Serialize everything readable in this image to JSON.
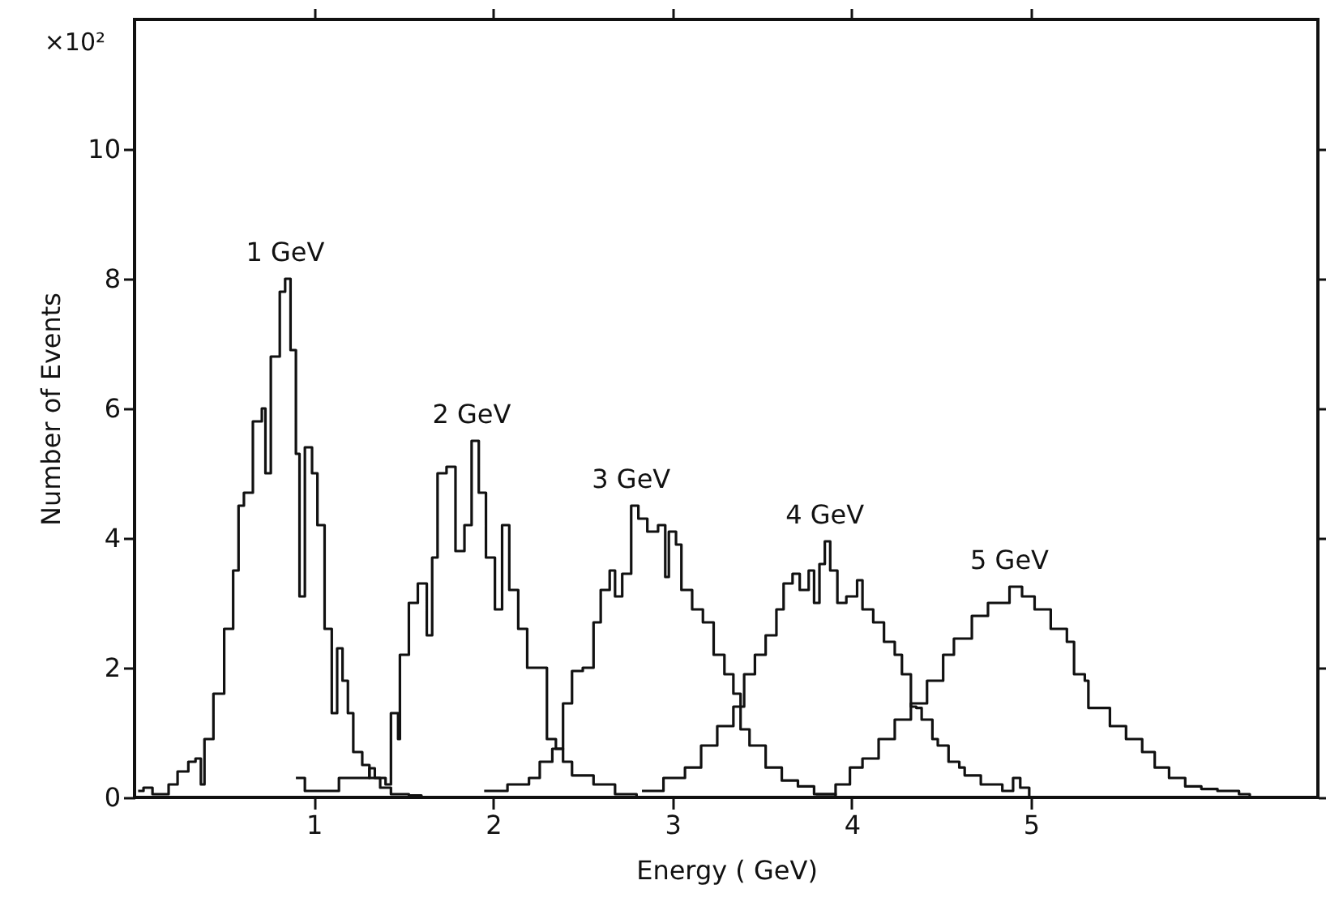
{
  "chart_data": {
    "type": "step",
    "xlabel": "Energy ( GeV)",
    "ylabel": "Number of Events",
    "annotations": [
      "×10²"
    ],
    "xlim": [
      0,
      6.6
    ],
    "ylim": [
      0,
      12
    ],
    "xticks": [
      1,
      2,
      3,
      4,
      5
    ],
    "yticks": [
      0,
      2,
      4,
      6,
      8,
      10
    ],
    "grid": false,
    "series": [
      {
        "name": "1 GeV",
        "color": "#111111",
        "x": [
          0.02,
          0.05,
          0.1,
          0.19,
          0.24,
          0.3,
          0.34,
          0.37,
          0.39,
          0.44,
          0.5,
          0.55,
          0.58,
          0.61,
          0.66,
          0.71,
          0.73,
          0.76,
          0.81,
          0.84,
          0.87,
          0.9,
          0.92,
          0.95,
          0.99,
          1.02,
          1.06,
          1.1,
          1.13,
          1.16,
          1.19,
          1.22,
          1.27,
          1.31,
          1.37,
          1.43,
          1.53,
          1.6
        ],
        "values": [
          0.1,
          0.15,
          0.05,
          0.2,
          0.4,
          0.55,
          0.6,
          0.2,
          0.9,
          1.6,
          2.6,
          3.5,
          4.5,
          4.7,
          5.8,
          6.0,
          5.0,
          6.8,
          7.8,
          8.0,
          6.9,
          5.3,
          3.1,
          5.4,
          5.0,
          4.2,
          2.6,
          1.3,
          2.3,
          1.8,
          1.3,
          0.7,
          0.5,
          0.3,
          0.15,
          0.05,
          0.03,
          0
        ]
      },
      {
        "name": "2 GeV",
        "color": "#111111",
        "x": [
          0.9,
          0.95,
          1.08,
          1.14,
          1.31,
          1.34,
          1.4,
          1.43,
          1.47,
          1.48,
          1.53,
          1.58,
          1.63,
          1.66,
          1.69,
          1.74,
          1.79,
          1.84,
          1.88,
          1.92,
          1.96,
          2.01,
          2.05,
          2.09,
          2.14,
          2.19,
          2.25,
          2.3,
          2.35,
          2.39,
          2.44,
          2.56,
          2.68,
          2.8
        ],
        "values": [
          0.3,
          0.1,
          0.1,
          0.3,
          0.45,
          0.3,
          0.2,
          1.3,
          0.9,
          2.2,
          3.0,
          3.3,
          2.5,
          3.7,
          5.0,
          5.1,
          3.8,
          4.2,
          5.5,
          4.7,
          3.7,
          2.9,
          4.2,
          3.2,
          2.6,
          2.0,
          2.0,
          0.9,
          0.75,
          0.55,
          0.34,
          0.2,
          0.05,
          0
        ]
      },
      {
        "name": "3 GeV",
        "color": "#111111",
        "x": [
          1.95,
          2.08,
          2.2,
          2.26,
          2.33,
          2.39,
          2.44,
          2.5,
          2.56,
          2.6,
          2.65,
          2.68,
          2.72,
          2.77,
          2.81,
          2.86,
          2.92,
          2.96,
          2.98,
          3.02,
          3.05,
          3.11,
          3.17,
          3.23,
          3.29,
          3.34,
          3.38,
          3.43,
          3.52,
          3.61,
          3.7,
          3.79,
          3.91
        ],
        "values": [
          0.1,
          0.2,
          0.3,
          0.55,
          0.75,
          1.45,
          1.95,
          2.0,
          2.7,
          3.2,
          3.5,
          3.1,
          3.45,
          4.5,
          4.3,
          4.1,
          4.2,
          3.4,
          4.1,
          3.9,
          3.2,
          2.9,
          2.7,
          2.2,
          1.9,
          1.6,
          1.05,
          0.8,
          0.46,
          0.26,
          0.17,
          0.05,
          0
        ]
      },
      {
        "name": "4 GeV",
        "color": "#111111",
        "x": [
          2.83,
          2.95,
          3.07,
          3.16,
          3.25,
          3.34,
          3.4,
          3.46,
          3.52,
          3.58,
          3.62,
          3.67,
          3.71,
          3.76,
          3.79,
          3.82,
          3.85,
          3.88,
          3.92,
          3.97,
          4.03,
          4.06,
          4.12,
          4.18,
          4.24,
          4.28,
          4.33,
          4.36,
          4.39,
          4.45,
          4.48,
          4.54,
          4.6,
          4.63,
          4.72,
          4.84,
          4.9,
          4.94,
          4.99
        ],
        "values": [
          0.1,
          0.3,
          0.46,
          0.8,
          1.1,
          1.4,
          1.9,
          2.2,
          2.5,
          2.9,
          3.3,
          3.45,
          3.2,
          3.5,
          3.0,
          3.6,
          3.95,
          3.5,
          3.0,
          3.1,
          3.35,
          2.9,
          2.7,
          2.4,
          2.2,
          1.9,
          1.4,
          1.38,
          1.2,
          0.9,
          0.8,
          0.55,
          0.46,
          0.34,
          0.2,
          0.1,
          0.3,
          0.15,
          0
        ]
      },
      {
        "name": "5 GeV",
        "color": "#111111",
        "x": [
          3.8,
          3.91,
          3.99,
          4.06,
          4.15,
          4.24,
          4.33,
          4.42,
          4.51,
          4.57,
          4.67,
          4.76,
          4.88,
          4.95,
          5.02,
          5.11,
          5.2,
          5.24,
          5.3,
          5.32,
          5.44,
          5.53,
          5.62,
          5.69,
          5.77,
          5.86,
          5.95,
          6.04,
          6.16,
          6.22
        ],
        "values": [
          0.05,
          0.2,
          0.46,
          0.6,
          0.9,
          1.2,
          1.45,
          1.8,
          2.2,
          2.45,
          2.8,
          3.0,
          3.25,
          3.1,
          2.9,
          2.6,
          2.4,
          1.9,
          1.8,
          1.38,
          1.1,
          0.9,
          0.7,
          0.46,
          0.3,
          0.17,
          0.13,
          0.1,
          0.05,
          0
        ]
      }
    ]
  }
}
